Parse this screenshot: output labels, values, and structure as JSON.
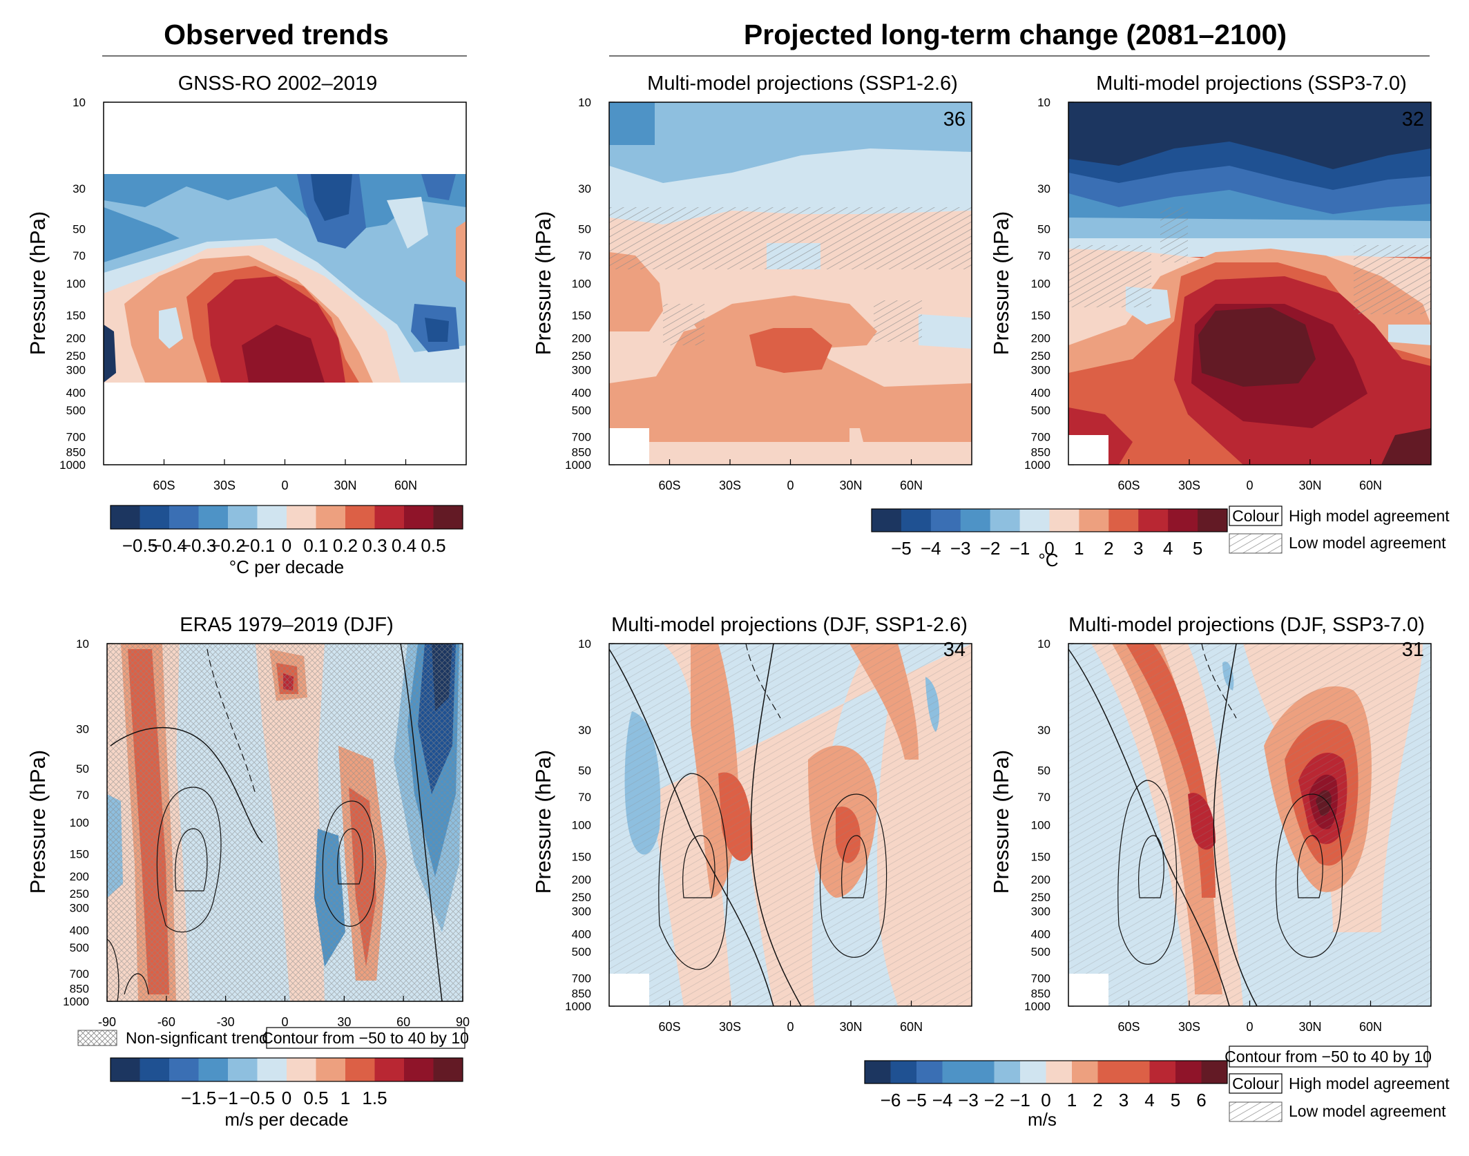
{
  "headers": {
    "observed": "Observed trends",
    "projected": "Projected long-term change (2081–2100)"
  },
  "colors": {
    "blue5": "#1c3660",
    "blue4": "#1f5192",
    "blue3": "#3a6fb4",
    "blue2": "#4e93c6",
    "blue1": "#8ebfdf",
    "blue0": "#d0e4f0",
    "red0": "#f6d6c7",
    "red1": "#eda07f",
    "red2": "#dc6046",
    "red3": "#b92733",
    "red4": "#8f1429",
    "red5": "#631a25",
    "hatch": "#8a8a8a",
    "contour": "#111111"
  },
  "chart_data": [
    {
      "id": "obs_temp",
      "type": "heatmap",
      "title": "GNSS-RO 2002–2019",
      "ylabel": "Pressure (hPa)",
      "yticks": [
        "10",
        "30",
        "50",
        "70",
        "100",
        "150",
        "200",
        "250",
        "300",
        "400",
        "500",
        "700",
        "850",
        "1000"
      ],
      "xticks": [
        "60S",
        "30S",
        "0",
        "30N",
        "60N"
      ],
      "colorbar": {
        "ticks": [
          "−0.5",
          "−0.4",
          "−0.3",
          "−0.2",
          "−0.1",
          "0",
          "0.1",
          "0.2",
          "0.3",
          "0.4",
          "0.5"
        ],
        "label": "°C per decade"
      }
    },
    {
      "id": "ssp126_temp",
      "type": "heatmap",
      "title": "Multi-model projections (SSP1-2.6)",
      "model_count": "36",
      "ylabel": "Pressure (hPa)",
      "yticks": [
        "10",
        "30",
        "50",
        "70",
        "100",
        "150",
        "200",
        "250",
        "300",
        "400",
        "500",
        "700",
        "850",
        "1000"
      ],
      "xticks": [
        "60S",
        "30S",
        "0",
        "30N",
        "60N"
      ]
    },
    {
      "id": "ssp370_temp",
      "type": "heatmap",
      "title": "Multi-model projections (SSP3-7.0)",
      "model_count": "32",
      "ylabel": "Pressure (hPa)",
      "yticks": [
        "10",
        "30",
        "50",
        "70",
        "100",
        "150",
        "200",
        "250",
        "300",
        "400",
        "500",
        "700",
        "850",
        "1000"
      ],
      "xticks": [
        "60S",
        "30S",
        "0",
        "30N",
        "60N"
      ],
      "colorbar": {
        "ticks": [
          "−5",
          "−4",
          "−3",
          "−2",
          "−1",
          "0",
          "1",
          "2",
          "3",
          "4",
          "5"
        ],
        "label": "°C"
      }
    },
    {
      "id": "obs_wind",
      "type": "heatmap",
      "title": "ERA5 1979–2019 (DJF)",
      "ylabel": "Pressure (hPa)",
      "yticks": [
        "10",
        "30",
        "50",
        "70",
        "100",
        "150",
        "200",
        "250",
        "300",
        "400",
        "500",
        "700",
        "850",
        "1000"
      ],
      "xticks": [
        "-90",
        "-60",
        "-30",
        "0",
        "30",
        "60",
        "90"
      ],
      "colorbar": {
        "ticks": [
          "−1.5",
          "−1",
          "−0.5",
          "0",
          "0.5",
          "1",
          "1.5"
        ],
        "label": "m/s per decade"
      }
    },
    {
      "id": "ssp126_wind",
      "type": "heatmap",
      "title": "Multi-model projections (DJF, SSP1-2.6)",
      "model_count": "34",
      "ylabel": "Pressure (hPa)",
      "yticks": [
        "10",
        "30",
        "50",
        "70",
        "100",
        "150",
        "200",
        "250",
        "300",
        "400",
        "500",
        "700",
        "850",
        "1000"
      ],
      "xticks": [
        "60S",
        "30S",
        "0",
        "30N",
        "60N"
      ]
    },
    {
      "id": "ssp370_wind",
      "type": "heatmap",
      "title": "Multi-model projections (DJF, SSP3-7.0)",
      "model_count": "31",
      "ylabel": "Pressure (hPa)",
      "yticks": [
        "10",
        "30",
        "50",
        "70",
        "100",
        "150",
        "200",
        "250",
        "300",
        "400",
        "500",
        "700",
        "850",
        "1000"
      ],
      "xticks": [
        "60S",
        "30S",
        "0",
        "30N",
        "60N"
      ],
      "colorbar": {
        "ticks": [
          "−6",
          "−5",
          "−4",
          "−3",
          "−2",
          "−1",
          "0",
          "1",
          "2",
          "3",
          "4",
          "5",
          "6"
        ],
        "label": "m/s"
      }
    }
  ],
  "legends": {
    "colour_box": "Colour",
    "high_agreement": "High model agreement",
    "low_agreement": "Low model agreement",
    "nonsig": "Non-signficant trend",
    "contour_note": "Contour from −50 to 40 by 10"
  }
}
